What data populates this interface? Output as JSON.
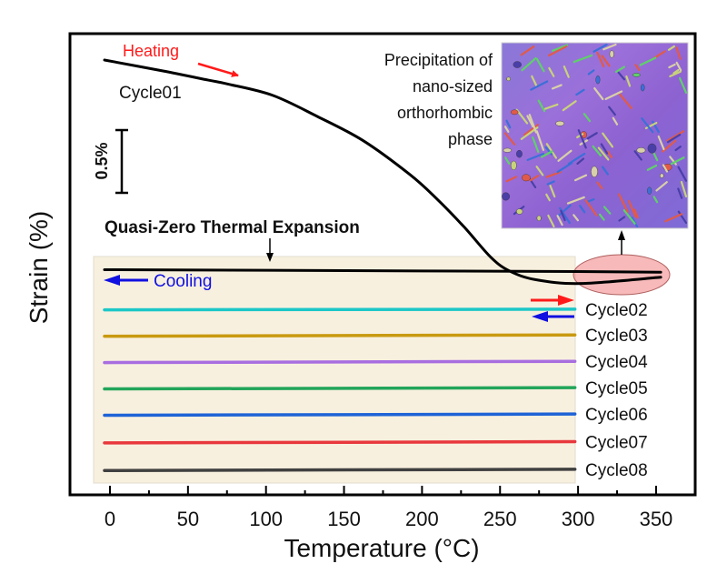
{
  "chart_data": {
    "type": "line",
    "title": "",
    "xlabel": "Temperature (°C)",
    "ylabel": "Strain (%)",
    "xlim": [
      -25,
      375
    ],
    "ylim": [
      -3.45,
      0.22
    ],
    "xticks": [
      0,
      50,
      100,
      150,
      200,
      250,
      300,
      350
    ],
    "xtick_labels": [
      "0",
      "50",
      "100",
      "150",
      "200",
      "250",
      "300",
      "350"
    ],
    "y_ticks_shown": false,
    "grid": false,
    "scale_bar": {
      "label": "0.5%",
      "value": 0.5
    },
    "series": [
      {
        "name": "Cycle01 heating",
        "label": "Cycle01",
        "color": "#000000",
        "x": [
          -3.5,
          34,
          63,
          75,
          104,
          133,
          162,
          192,
          209,
          227,
          244,
          256,
          273,
          302,
          353
        ],
        "y": [
          0,
          -0.087,
          -0.16,
          -0.19,
          -0.28,
          -0.45,
          -0.64,
          -0.91,
          -1.1,
          -1.33,
          -1.57,
          -1.68,
          -1.75,
          -1.78,
          -1.73
        ]
      },
      {
        "name": "Cycle01 cooling",
        "label": "",
        "color": "#000000",
        "x": [
          353,
          300,
          200,
          100,
          -3.5
        ],
        "y": [
          -1.69,
          -1.685,
          -1.68,
          -1.675,
          -1.67
        ]
      },
      {
        "name": "Cycle02",
        "label": "Cycle02",
        "color": "#1cc7c7",
        "x": [
          -3.5,
          298
        ],
        "y": [
          -1.99,
          -1.985
        ]
      },
      {
        "name": "Cycle03",
        "label": "Cycle03",
        "color": "#c99a10",
        "x": [
          -3.5,
          298
        ],
        "y": [
          -2.2,
          -2.19
        ]
      },
      {
        "name": "Cycle04",
        "label": "Cycle04",
        "color": "#a86ee0",
        "x": [
          -3.5,
          298
        ],
        "y": [
          -2.41,
          -2.4
        ]
      },
      {
        "name": "Cycle05",
        "label": "Cycle05",
        "color": "#22a55a",
        "x": [
          -3.5,
          298
        ],
        "y": [
          -2.62,
          -2.61
        ]
      },
      {
        "name": "Cycle06",
        "label": "Cycle06",
        "color": "#1e63d6",
        "x": [
          -3.5,
          298
        ],
        "y": [
          -2.83,
          -2.82
        ]
      },
      {
        "name": "Cycle07",
        "label": "Cycle07",
        "color": "#e8383d",
        "x": [
          -3.5,
          298
        ],
        "y": [
          -3.05,
          -3.04
        ]
      },
      {
        "name": "Cycle08",
        "label": "Cycle08",
        "color": "#404040",
        "x": [
          -3.5,
          298
        ],
        "y": [
          -3.27,
          -3.26
        ]
      }
    ],
    "annotations": {
      "heating": {
        "text": "Heating",
        "color": "#ff1a1a"
      },
      "cooling": {
        "text": "Cooling",
        "color": "#1010e0"
      },
      "qzte": {
        "text": "Quasi-Zero Thermal Expansion"
      },
      "inset_caption": [
        "Precipitation of",
        "nano-sized",
        "orthorhombic",
        "phase"
      ],
      "shaded_region_color": "#f8f0df",
      "highlight_ellipse_color": "#f08080"
    }
  }
}
